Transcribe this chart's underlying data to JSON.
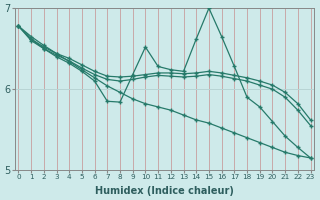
{
  "background_color": "#ceeaea",
  "grid_color_v": "#c8a8a8",
  "grid_color_h": "#b8d4d4",
  "line_color": "#267a6a",
  "x_min": 0,
  "x_max": 23,
  "y_min": 5,
  "y_max": 7,
  "xlabel": "Humidex (Indice chaleur)",
  "yticks": [
    5,
    6,
    7
  ],
  "xtick_labels": [
    "0",
    "1",
    "2",
    "3",
    "4",
    "5",
    "6",
    "7",
    "8",
    "9",
    "10",
    "11",
    "12",
    "13",
    "14",
    "15",
    "16",
    "17",
    "18",
    "19",
    "20",
    "21",
    "22",
    "23"
  ],
  "line_spiky": {
    "x": [
      0,
      1,
      2,
      3,
      4,
      5,
      6,
      7,
      8,
      9,
      10,
      11,
      12,
      13,
      14,
      15,
      16,
      17,
      18,
      19,
      20,
      21,
      22,
      23
    ],
    "y": [
      6.78,
      6.62,
      6.5,
      6.4,
      6.32,
      6.22,
      6.1,
      5.85,
      5.84,
      6.18,
      6.52,
      6.28,
      6.24,
      6.22,
      6.62,
      7.0,
      6.65,
      6.28,
      5.9,
      5.78,
      5.6,
      5.42,
      5.28,
      5.15
    ]
  },
  "line_diagonal": {
    "x": [
      0,
      1,
      2,
      3,
      4,
      5,
      6,
      7,
      8,
      9,
      10,
      11,
      12,
      13,
      14,
      15,
      16,
      17,
      18,
      19,
      20,
      21,
      22,
      23
    ],
    "y": [
      6.78,
      6.65,
      6.54,
      6.44,
      6.34,
      6.24,
      6.14,
      6.04,
      5.96,
      5.88,
      5.82,
      5.78,
      5.74,
      5.68,
      5.62,
      5.58,
      5.52,
      5.46,
      5.4,
      5.34,
      5.28,
      5.22,
      5.18,
      5.15
    ]
  },
  "line_flat1": {
    "x": [
      0,
      1,
      2,
      3,
      4,
      5,
      6,
      7,
      8,
      9,
      10,
      11,
      12,
      13,
      14,
      15,
      16,
      17,
      18,
      19,
      20,
      21,
      22,
      23
    ],
    "y": [
      6.78,
      6.62,
      6.52,
      6.44,
      6.38,
      6.3,
      6.22,
      6.16,
      6.15,
      6.16,
      6.18,
      6.2,
      6.2,
      6.19,
      6.2,
      6.22,
      6.2,
      6.17,
      6.14,
      6.1,
      6.05,
      5.96,
      5.82,
      5.62
    ]
  },
  "line_flat2": {
    "x": [
      0,
      1,
      2,
      3,
      4,
      5,
      6,
      7,
      8,
      9,
      10,
      11,
      12,
      13,
      14,
      15,
      16,
      17,
      18,
      19,
      20,
      21,
      22,
      23
    ],
    "y": [
      6.78,
      6.6,
      6.5,
      6.42,
      6.35,
      6.26,
      6.18,
      6.12,
      6.1,
      6.12,
      6.15,
      6.17,
      6.16,
      6.15,
      6.16,
      6.18,
      6.16,
      6.13,
      6.1,
      6.05,
      6.0,
      5.9,
      5.74,
      5.55
    ]
  }
}
